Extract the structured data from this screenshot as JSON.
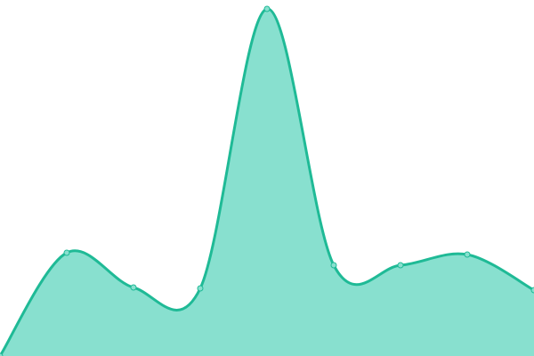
{
  "chart_data": {
    "type": "area",
    "categories": [
      null,
      null,
      null,
      null,
      null,
      null,
      null,
      null,
      null
    ],
    "values": [
      0,
      29,
      19.25,
      19,
      97.5,
      25.5,
      25.5,
      28.5,
      18.5
    ],
    "ylim": [
      0,
      100
    ],
    "color": "#1fba96",
    "fill_color": "#88e0cf",
    "smooth": true,
    "markers": true
  }
}
